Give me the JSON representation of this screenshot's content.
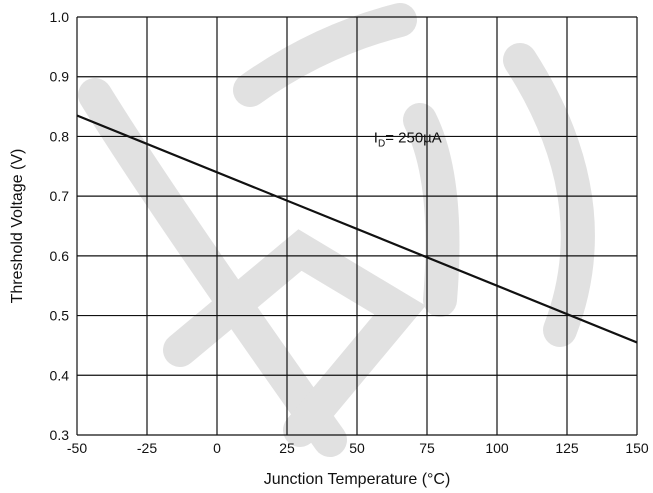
{
  "chart_data": {
    "type": "line",
    "title": "",
    "xlabel": "Junction Temperature  (°C)",
    "ylabel": "Threshold Voltage (V)",
    "xlim": [
      -50,
      150
    ],
    "ylim": [
      0.3,
      1.0
    ],
    "x_ticks": [
      -50,
      -25,
      0,
      25,
      50,
      75,
      100,
      125,
      150
    ],
    "y_ticks": [
      0.3,
      0.4,
      0.5,
      0.6,
      0.7,
      0.8,
      0.9,
      1.0
    ],
    "x_tick_labels": [
      "-50",
      "-25",
      "0",
      "25",
      "50",
      "75",
      "100",
      "125",
      "150"
    ],
    "y_tick_labels": [
      "0.3",
      "0.4",
      "0.5",
      "0.6",
      "0.7",
      "0.8",
      "0.9",
      "1.0"
    ],
    "grid": true,
    "series": [
      {
        "x": [
          -50,
          150
        ],
        "y": [
          0.835,
          0.455
        ]
      }
    ],
    "annotation": {
      "main": "I",
      "subscript": "D",
      "rest": "= 250µA",
      "x": 56,
      "y": 0.79
    },
    "colors": {
      "line": "#111111",
      "grid": "#111111",
      "text": "#111111",
      "watermark": "#d8d8d8"
    }
  }
}
